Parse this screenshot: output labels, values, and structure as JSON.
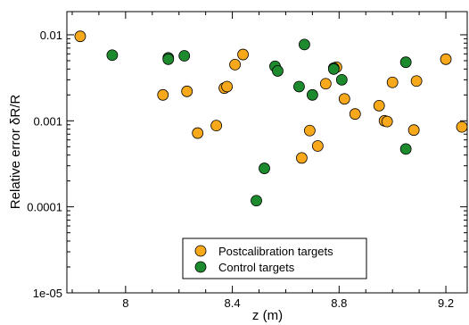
{
  "chart_data": {
    "type": "scatter",
    "xlabel": "z (m)",
    "ylabel": "Relative error δR/R",
    "xlim": [
      7.78,
      9.28
    ],
    "ylim": [
      1e-05,
      0.0186
    ],
    "yscale": "log",
    "x_ticks": [
      8,
      8.4,
      8.8,
      9.2
    ],
    "x_tick_labels": [
      "8",
      "8.4",
      "8.8",
      "9.2"
    ],
    "y_ticks": [
      1e-05,
      0.0001,
      0.001,
      0.01
    ],
    "y_tick_labels": [
      "1e-05",
      "0.0001",
      "0.001",
      "0.01"
    ],
    "grid": false,
    "legend_position": "bottom-center",
    "series": [
      {
        "name": "Postcalibration targets",
        "color": "#f7a81b",
        "points": [
          [
            7.83,
            0.0096
          ],
          [
            8.14,
            0.002
          ],
          [
            8.23,
            0.0022
          ],
          [
            8.27,
            0.00072
          ],
          [
            8.34,
            0.00088
          ],
          [
            8.37,
            0.0024
          ],
          [
            8.38,
            0.0025
          ],
          [
            8.41,
            0.0045
          ],
          [
            8.44,
            0.0059
          ],
          [
            8.66,
            0.00037
          ],
          [
            8.69,
            0.00077
          ],
          [
            8.72,
            0.00051
          ],
          [
            8.75,
            0.0027
          ],
          [
            8.79,
            0.0042
          ],
          [
            8.82,
            0.0018
          ],
          [
            8.86,
            0.0012
          ],
          [
            8.95,
            0.0015
          ],
          [
            8.97,
            0.001
          ],
          [
            8.98,
            0.00098
          ],
          [
            9.0,
            0.0028
          ],
          [
            9.08,
            0.00078
          ],
          [
            9.09,
            0.0029
          ],
          [
            9.2,
            0.0052
          ],
          [
            9.26,
            0.00085
          ]
        ]
      },
      {
        "name": "Control targets",
        "color": "#1d8a2e",
        "points": [
          [
            7.95,
            0.0058
          ],
          [
            8.16,
            0.0054
          ],
          [
            8.16,
            0.0052
          ],
          [
            8.22,
            0.0057
          ],
          [
            8.49,
            0.000118
          ],
          [
            8.52,
            0.00028
          ],
          [
            8.56,
            0.0043
          ],
          [
            8.57,
            0.0038
          ],
          [
            8.65,
            0.0025
          ],
          [
            8.67,
            0.0077
          ],
          [
            8.7,
            0.002
          ],
          [
            8.78,
            0.0041
          ],
          [
            8.78,
            0.004
          ],
          [
            8.81,
            0.003
          ],
          [
            9.05,
            0.0048
          ],
          [
            9.05,
            0.00047
          ]
        ]
      }
    ]
  }
}
